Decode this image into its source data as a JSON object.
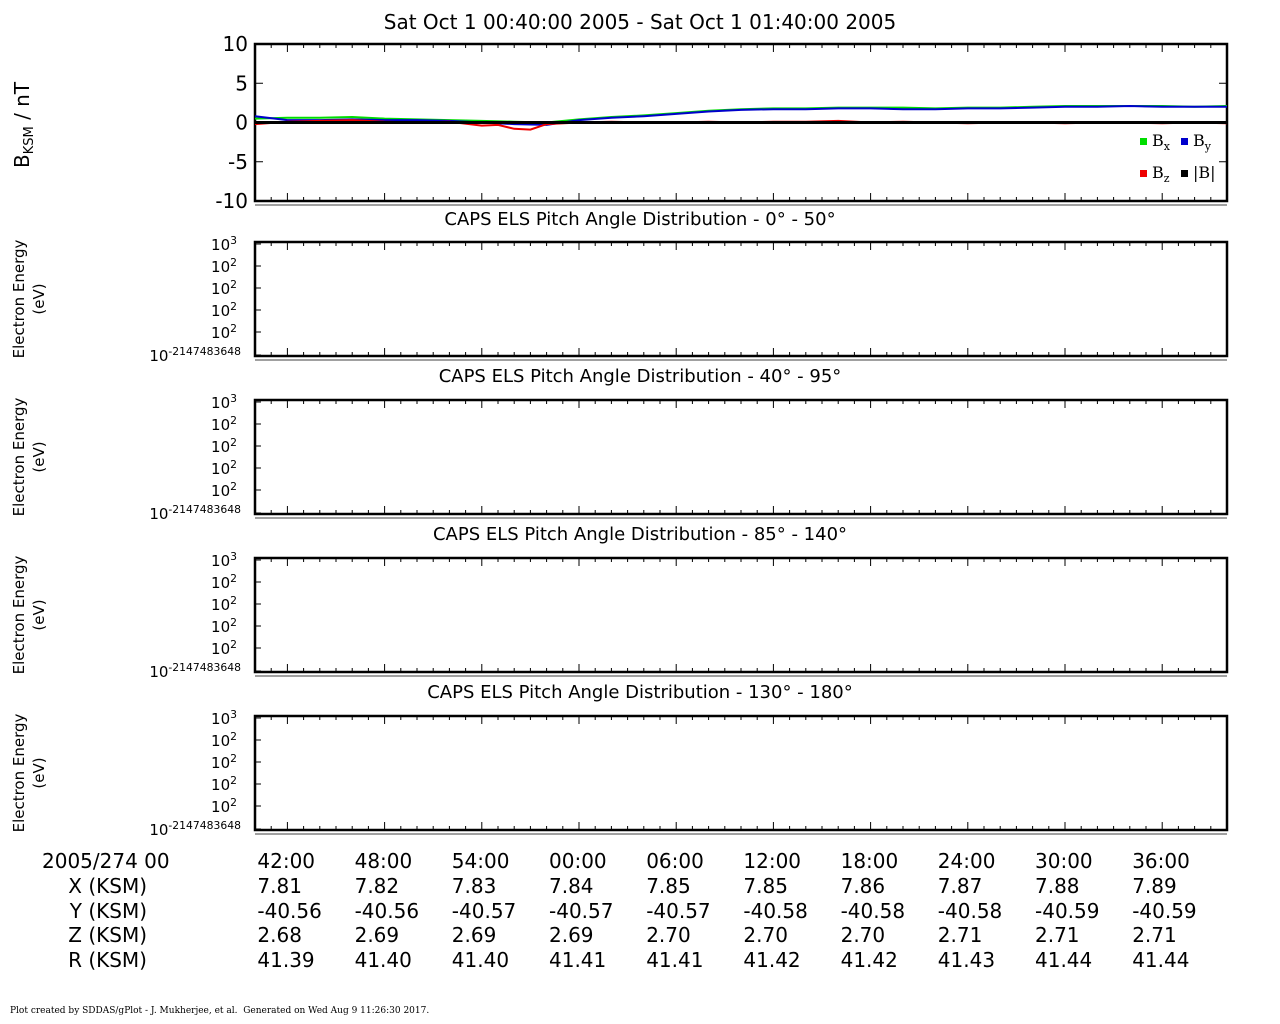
{
  "title": "Sat Oct 1 00:40:00 2005 - Sat Oct 1 01:40:00 2005",
  "colors": {
    "bx": "#00dd00",
    "by": "#0000cc",
    "bz": "#ee0000",
    "bmag": "#000000"
  },
  "chart_data": [
    {
      "type": "line",
      "ylabel_main": "B",
      "ylabel_sub": "KSM",
      "ylabel_unit": " / nT",
      "ylim": [
        -10,
        10
      ],
      "yticks": [
        10,
        5,
        0,
        -5,
        -10
      ],
      "ytick_labels": [
        "10",
        "5",
        "0",
        "-5",
        "-10"
      ],
      "xlim": [
        0,
        60
      ],
      "legend_placement": "bottom-right",
      "legend": [
        {
          "main": "B",
          "sub": "x",
          "color": "bx"
        },
        {
          "main": "B",
          "sub": "y",
          "color": "by"
        },
        {
          "main": "B",
          "sub": "z",
          "color": "bz"
        },
        {
          "main": "|B|",
          "sub": "",
          "color": "bmag"
        }
      ],
      "series": [
        {
          "name": "Bx",
          "color": "bx",
          "x": [
            0,
            2,
            4,
            6,
            8,
            10,
            12,
            14,
            16,
            18,
            20,
            22,
            24,
            26,
            28,
            30,
            32,
            34,
            36,
            38,
            40,
            42,
            44,
            46,
            48,
            50,
            52,
            54,
            56,
            58,
            60
          ],
          "y": [
            0.5,
            0.6,
            0.6,
            0.7,
            0.5,
            0.4,
            0.3,
            0.2,
            0.1,
            0.0,
            0.4,
            0.7,
            0.9,
            1.2,
            1.5,
            1.7,
            1.8,
            1.8,
            1.9,
            1.9,
            1.9,
            1.8,
            1.9,
            1.9,
            2.0,
            2.1,
            2.1,
            2.1,
            2.1,
            2.0,
            2.1
          ]
        },
        {
          "name": "By",
          "color": "by",
          "x": [
            0,
            2,
            4,
            6,
            8,
            10,
            12,
            14,
            16,
            18,
            20,
            22,
            24,
            26,
            28,
            30,
            32,
            34,
            36,
            38,
            40,
            42,
            44,
            46,
            48,
            50,
            52,
            54,
            56,
            58,
            60
          ],
          "y": [
            0.8,
            0.3,
            0.3,
            0.4,
            0.3,
            0.3,
            0.2,
            0.0,
            -0.2,
            -0.3,
            0.3,
            0.6,
            0.8,
            1.1,
            1.4,
            1.6,
            1.7,
            1.7,
            1.8,
            1.8,
            1.7,
            1.7,
            1.8,
            1.8,
            1.9,
            2.0,
            2.0,
            2.1,
            2.0,
            2.0,
            2.0
          ]
        },
        {
          "name": "Bz",
          "color": "bz",
          "x": [
            0,
            2,
            4,
            6,
            8,
            10,
            12,
            14,
            15,
            16,
            17,
            18,
            20,
            22,
            24,
            26,
            28,
            30,
            32,
            34,
            36,
            38,
            40,
            42,
            44,
            46,
            48,
            50,
            52,
            54,
            56,
            58,
            60
          ],
          "y": [
            -0.2,
            0.1,
            0.2,
            0.3,
            0.1,
            0.0,
            0.1,
            -0.4,
            -0.3,
            -0.8,
            -0.9,
            -0.2,
            0.0,
            0.1,
            0.0,
            0.0,
            0.1,
            0.0,
            0.1,
            0.1,
            0.2,
            0.0,
            0.1,
            0.0,
            -0.1,
            0.0,
            0.0,
            -0.1,
            0.0,
            0.0,
            -0.1,
            0.0,
            -0.1
          ]
        },
        {
          "name": "|B|",
          "color": "bmag",
          "x": [
            0,
            60
          ],
          "y": [
            0.0,
            0.0
          ]
        }
      ]
    },
    {
      "type": "heatmap",
      "title": "CAPS ELS Pitch Angle Distribution - 0° - 50°",
      "ylabel": [
        "Electron Energy",
        "(eV)"
      ],
      "yticks": [
        {
          "base": "10",
          "exp": "3"
        },
        {
          "base": "10",
          "exp": "2"
        },
        {
          "base": "10",
          "exp": "2"
        },
        {
          "base": "10",
          "exp": "2"
        },
        {
          "base": "10",
          "exp": "2"
        },
        {
          "base": "10",
          "exp": "-2147483648"
        }
      ],
      "values": []
    },
    {
      "type": "heatmap",
      "title": "CAPS ELS Pitch Angle Distribution - 40° - 95°",
      "ylabel": [
        "Electron Energy",
        "(eV)"
      ],
      "yticks": [
        {
          "base": "10",
          "exp": "3"
        },
        {
          "base": "10",
          "exp": "2"
        },
        {
          "base": "10",
          "exp": "2"
        },
        {
          "base": "10",
          "exp": "2"
        },
        {
          "base": "10",
          "exp": "2"
        },
        {
          "base": "10",
          "exp": "-2147483648"
        }
      ],
      "values": []
    },
    {
      "type": "heatmap",
      "title": "CAPS ELS Pitch Angle Distribution - 85° - 140°",
      "ylabel": [
        "Electron Energy",
        "(eV)"
      ],
      "yticks": [
        {
          "base": "10",
          "exp": "3"
        },
        {
          "base": "10",
          "exp": "2"
        },
        {
          "base": "10",
          "exp": "2"
        },
        {
          "base": "10",
          "exp": "2"
        },
        {
          "base": "10",
          "exp": "2"
        },
        {
          "base": "10",
          "exp": "-2147483648"
        }
      ],
      "values": []
    },
    {
      "type": "heatmap",
      "title": "CAPS ELS Pitch Angle Distribution - 130° - 180°",
      "ylabel": [
        "Electron Energy",
        "(eV)"
      ],
      "yticks": [
        {
          "base": "10",
          "exp": "3"
        },
        {
          "base": "10",
          "exp": "2"
        },
        {
          "base": "10",
          "exp": "2"
        },
        {
          "base": "10",
          "exp": "2"
        },
        {
          "base": "10",
          "exp": "2"
        },
        {
          "base": "10",
          "exp": "-2147483648"
        }
      ],
      "values": []
    }
  ],
  "time_axis": {
    "xlim": [
      0,
      60
    ],
    "start_label": "2005/274 00",
    "tick_minutes": [
      2,
      8,
      14,
      20,
      26,
      32,
      38,
      44,
      50,
      56
    ],
    "tick_labels": [
      "42:00",
      "48:00",
      "54:00",
      "00:00",
      "06:00",
      "12:00",
      "18:00",
      "24:00",
      "30:00",
      "36:00"
    ],
    "rows": [
      {
        "label": "X (KSM)",
        "values": [
          "7.81",
          "7.82",
          "7.83",
          "7.84",
          "7.85",
          "7.85",
          "7.86",
          "7.87",
          "7.88",
          "7.89"
        ]
      },
      {
        "label": "Y (KSM)",
        "values": [
          "-40.56",
          "-40.56",
          "-40.57",
          "-40.57",
          "-40.57",
          "-40.58",
          "-40.58",
          "-40.58",
          "-40.59",
          "-40.59"
        ]
      },
      {
        "label": "Z (KSM)",
        "values": [
          "2.68",
          "2.69",
          "2.69",
          "2.69",
          "2.70",
          "2.70",
          "2.70",
          "2.71",
          "2.71",
          "2.71"
        ]
      },
      {
        "label": "R (KSM)",
        "values": [
          "41.39",
          "41.40",
          "41.40",
          "41.41",
          "41.41",
          "41.42",
          "41.42",
          "41.43",
          "41.44",
          "41.44"
        ]
      }
    ]
  },
  "credit": "Plot created by SDDAS/gPlot - J. Mukherjee, et al.  Generated on Wed Aug 9 11:26:30 2017."
}
